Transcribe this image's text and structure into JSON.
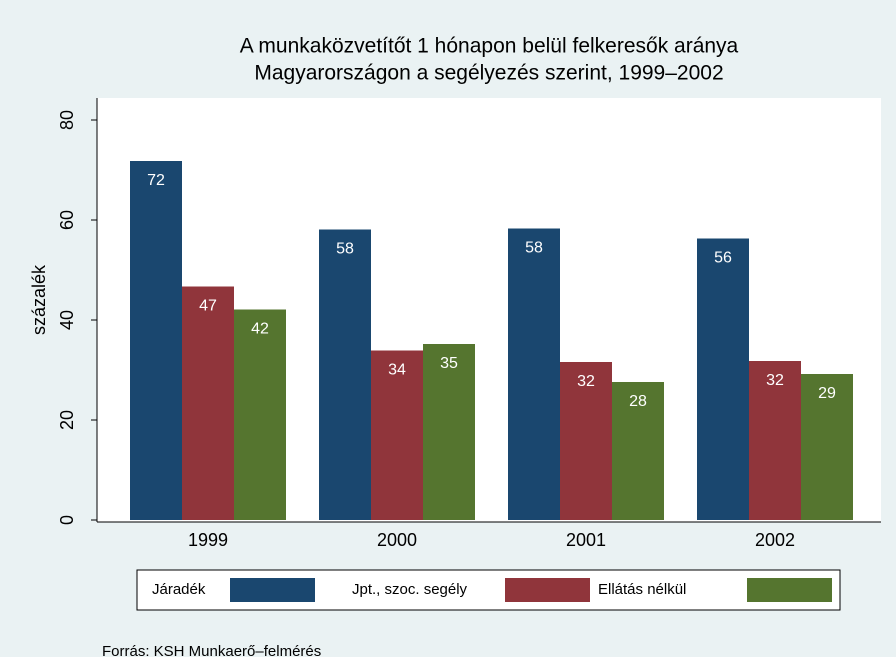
{
  "chart_data": {
    "type": "bar",
    "title": [
      "A munkaközvetítőt 1 hónapon belül felkeresők aránya",
      "Magyarországon a segélyezés szerint, 1999–2002"
    ],
    "ylabel": "százalék",
    "categories": [
      "1999",
      "2000",
      "2001",
      "2002"
    ],
    "series": [
      {
        "name": "Járadék",
        "color": "#1a476f",
        "values": [
          71.8,
          58.1,
          58.3,
          56.3
        ],
        "value_labels": [
          "72",
          "58",
          "58",
          "56"
        ]
      },
      {
        "name": "Jpt., szoc. segély",
        "color": "#90353b",
        "values": [
          46.7,
          33.9,
          31.6,
          31.8
        ],
        "value_labels": [
          "47",
          "34",
          "32",
          "32"
        ]
      },
      {
        "name": "Ellátás nélkül",
        "color": "#55752f",
        "values": [
          42.1,
          35.2,
          27.6,
          29.2
        ],
        "value_labels": [
          "42",
          "35",
          "28",
          "29"
        ]
      }
    ],
    "ylim": [
      0,
      80
    ],
    "yticks": [
      0,
      20,
      40,
      60,
      80
    ],
    "note": "Forrás: KSH Munkaerő–felmérés"
  }
}
